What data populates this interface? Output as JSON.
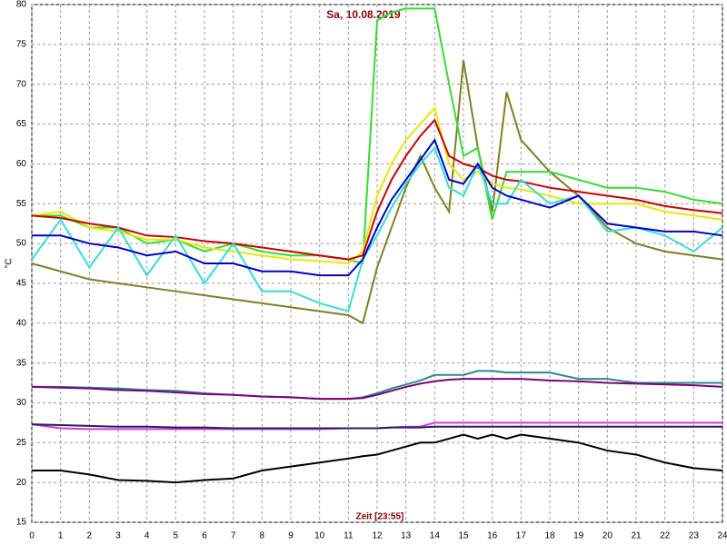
{
  "chart_data": {
    "type": "line",
    "title": "Sa, 10.08.2019",
    "x_label": "Zeit [23:55]",
    "y_label": "°C",
    "x": [
      0,
      1,
      2,
      3,
      4,
      5,
      6,
      7,
      8,
      9,
      10,
      11,
      11.5,
      12,
      12.5,
      13,
      13.5,
      14,
      14.5,
      15,
      15.5,
      16,
      16.5,
      17,
      18,
      19,
      20,
      21,
      22,
      23,
      24
    ],
    "xlim": [
      0,
      24
    ],
    "xticks": [
      0,
      1,
      2,
      3,
      4,
      5,
      6,
      7,
      8,
      9,
      10,
      11,
      12,
      13,
      14,
      15,
      16,
      17,
      18,
      19,
      20,
      21,
      22,
      23,
      24
    ],
    "ylim": [
      15,
      80
    ],
    "yticks": [
      15,
      20,
      25,
      30,
      35,
      40,
      45,
      50,
      55,
      60,
      65,
      70,
      75,
      80
    ],
    "grid": true,
    "series": [
      {
        "color": "#808020",
        "values": [
          47.5,
          46.5,
          45.5,
          45,
          44.5,
          44,
          43.5,
          43,
          42.5,
          42,
          41.5,
          41,
          40,
          47,
          52,
          57,
          61,
          57,
          54,
          73,
          62,
          54,
          69,
          63,
          59,
          56,
          52,
          50,
          49,
          48.5,
          48
        ]
      },
      {
        "color": "#33dd33",
        "values": [
          53.5,
          53.5,
          52,
          52,
          50,
          50.5,
          49,
          50,
          49,
          48.5,
          48.5,
          48,
          47.5,
          78,
          79,
          79.5,
          79.5,
          79.5,
          70,
          61,
          62,
          53,
          59,
          59,
          59,
          58,
          57,
          57,
          56.5,
          55.5,
          55
        ]
      },
      {
        "color": "#e8e800",
        "values": [
          53.5,
          54,
          52,
          51.5,
          50.5,
          50.5,
          49.5,
          49,
          48.5,
          48,
          47.8,
          47.5,
          49,
          56,
          60,
          63,
          65,
          67,
          60,
          58,
          59,
          57.5,
          57,
          56.8,
          56,
          55,
          55,
          55,
          54,
          53.5,
          53
        ]
      },
      {
        "color": "#cc0000",
        "values": [
          53.5,
          53.2,
          52.5,
          52,
          51,
          50.8,
          50.3,
          50,
          49.5,
          49,
          48.5,
          48,
          48.5,
          54,
          58,
          61,
          63.5,
          65.5,
          61,
          60,
          59.5,
          58.5,
          58,
          57.8,
          57,
          56.5,
          56,
          55.5,
          54.7,
          54.2,
          53.8
        ]
      },
      {
        "color": "#33dddd",
        "values": [
          48,
          53,
          47,
          52,
          46,
          51,
          45,
          50,
          44,
          44,
          42.5,
          41.5,
          48,
          51,
          54.5,
          57.5,
          60,
          62,
          57,
          56,
          60,
          55,
          55,
          58,
          55,
          56,
          51.5,
          52,
          51,
          49,
          52
        ]
      },
      {
        "color": "#0000cc",
        "values": [
          51,
          51,
          50,
          49.5,
          48.5,
          49,
          47.5,
          47.5,
          46.5,
          46.5,
          46,
          46,
          48,
          52,
          55.5,
          58,
          60.5,
          63,
          58,
          57.5,
          60,
          57,
          56,
          55.5,
          54.5,
          56,
          52.5,
          52,
          51.5,
          51.5,
          51
        ]
      },
      {
        "color": "#2a8a8a",
        "values": [
          32,
          32,
          31.9,
          31.8,
          31.6,
          31.5,
          31.2,
          31,
          30.8,
          30.7,
          30.5,
          30.5,
          30.7,
          31.2,
          31.8,
          32.3,
          32.8,
          33.5,
          33.5,
          33.5,
          34,
          34,
          33.8,
          33.8,
          33.8,
          33,
          33,
          32.5,
          32.5,
          32.5,
          32.5
        ]
      },
      {
        "color": "#800080",
        "values": [
          32,
          31.9,
          31.8,
          31.6,
          31.5,
          31.3,
          31.1,
          31,
          30.8,
          30.7,
          30.5,
          30.5,
          30.6,
          31,
          31.5,
          32,
          32.4,
          32.7,
          32.9,
          33,
          33,
          33,
          33,
          33,
          32.8,
          32.7,
          32.5,
          32.4,
          32.3,
          32.2,
          32
        ]
      },
      {
        "color": "#dd33dd",
        "values": [
          27.3,
          26.8,
          26.7,
          26.7,
          26.7,
          26.7,
          26.7,
          26.7,
          26.7,
          26.7,
          26.7,
          26.8,
          26.8,
          26.8,
          26.9,
          27,
          27,
          27.5,
          27.5,
          27.5,
          27.5,
          27.5,
          27.5,
          27.5,
          27.5,
          27.5,
          27.5,
          27.5,
          27.5,
          27.5,
          27.5
        ]
      },
      {
        "color": "#202060",
        "values": [
          27.3,
          27.2,
          27.1,
          27,
          27,
          26.9,
          26.9,
          26.8,
          26.8,
          26.8,
          26.8,
          26.8,
          26.8,
          26.8,
          26.9,
          26.9,
          26.9,
          27,
          27,
          27,
          27,
          27,
          27,
          27,
          27,
          27,
          27,
          27,
          27,
          27,
          27
        ]
      },
      {
        "color": "#000000",
        "values": [
          21.5,
          21.5,
          21,
          20.3,
          20.2,
          20,
          20.3,
          20.5,
          21.5,
          22,
          22.5,
          23,
          23.3,
          23.5,
          24,
          24.5,
          25,
          25,
          25.5,
          26,
          25.5,
          26,
          25.5,
          26,
          25.5,
          25,
          24,
          23.5,
          22.5,
          21.8,
          21.5
        ]
      }
    ]
  }
}
